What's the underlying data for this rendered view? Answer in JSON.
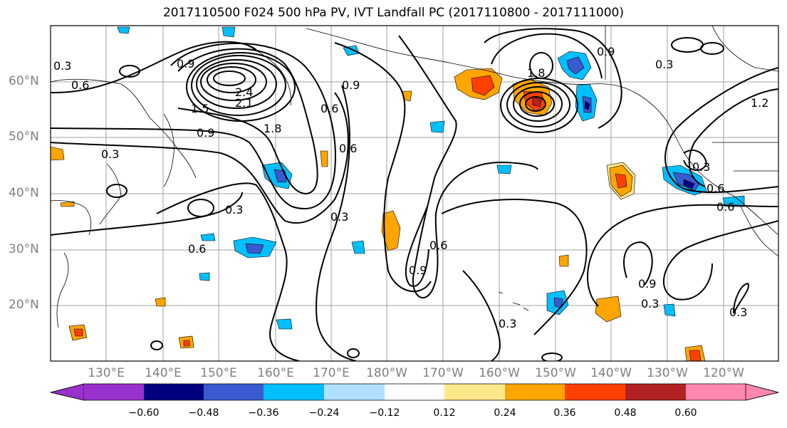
{
  "title": "2017110500 F024 500 hPa PV, IVT Landfall PC (2017110800 - 2017111000)",
  "lat_labels": [
    "60°N",
    "50°N",
    "40°N",
    "30°N",
    "20°N"
  ],
  "lon_labels": [
    "130°E",
    "140°E",
    "150°E",
    "160°E",
    "170°E",
    "180°W",
    "170°W",
    "160°W",
    "150°W",
    "140°W",
    "130°W",
    "120°W"
  ],
  "colorbar": {
    "ticks": [
      "−0.60",
      "−0.48",
      "−0.36",
      "−0.24",
      "−0.12",
      "0.12",
      "0.24",
      "0.36",
      "0.48",
      "0.60"
    ],
    "colors": [
      "#9932cc",
      "#000080",
      "#3a5bd0",
      "#00bfff",
      "#b0e0ff",
      "#ffffff",
      "#ffe88a",
      "#ffa500",
      "#ff4000",
      "#b22222",
      "#ff88b0"
    ]
  },
  "contour_labels": [
    "0.3",
    "0.6",
    "0.9",
    "1.5",
    "2.1",
    "2.4",
    "1.8",
    "0.9",
    "0.6",
    "0.6",
    "0.3",
    "0.3",
    "0.6",
    "0.3",
    "0.9",
    "0.6",
    "0.3",
    "1.8",
    "0.9",
    "0.3",
    "0.9",
    "1.2",
    "0.3",
    "0.6",
    "0.6",
    "0.9",
    "0.3",
    "0.3"
  ]
}
